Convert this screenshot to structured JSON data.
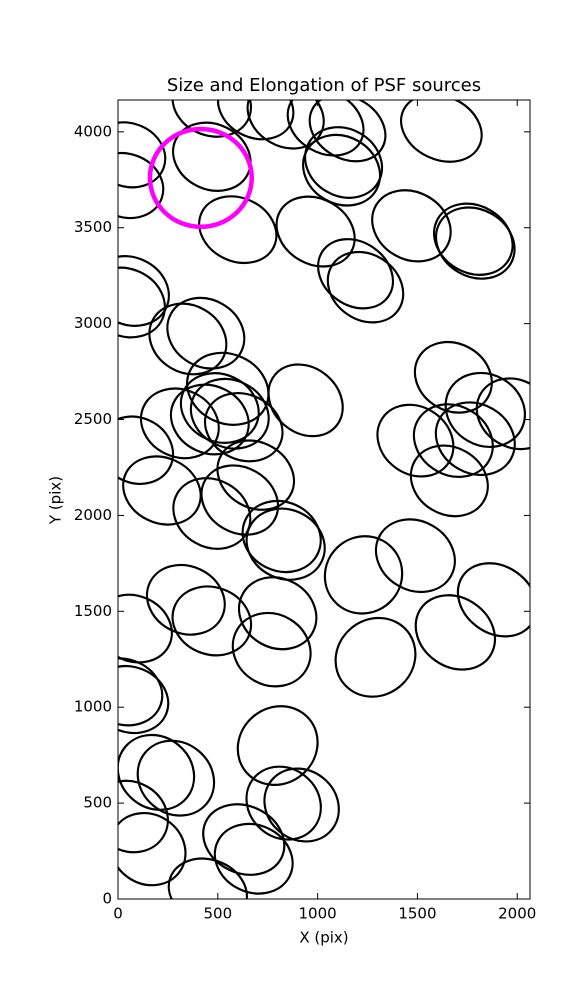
{
  "chart_data": {
    "type": "ellipse",
    "title": "Size and Elongation of PSF sources",
    "xlabel": "X (pix)",
    "ylabel": "Y (pix)",
    "xlim": [
      0,
      2064
    ],
    "ylim": [
      0,
      4166
    ],
    "xticks": [
      0,
      500,
      1000,
      1500,
      2000
    ],
    "yticks": [
      0,
      500,
      1000,
      1500,
      2000,
      2500,
      3000,
      3500,
      4000
    ],
    "color": "#000000",
    "ellipses": {
      "x": [
        50,
        40,
        470,
        470,
        690,
        840,
        1040,
        1150,
        1620,
        1130,
        1120,
        600,
        990,
        1470,
        1790,
        1780,
        1190,
        1240,
        60,
        40,
        350,
        440,
        550,
        510,
        940,
        310,
        460,
        560,
        630,
        690,
        90,
        220,
        470,
        610,
        820,
        840,
        1230,
        1490,
        1680,
        1840,
        1990,
        1490,
        1680,
        1790,
        1660,
        340,
        470,
        800,
        770,
        80,
        30,
        60,
        1290,
        1690,
        1900,
        190,
        290,
        800,
        830,
        920,
        60,
        150,
        630,
        680,
        450
      ],
      "y": [
        3880,
        3720,
        3870,
        4150,
        4130,
        4090,
        4050,
        4020,
        4020,
        3840,
        3800,
        3490,
        3480,
        3510,
        3420,
        3440,
        3260,
        3190,
        3170,
        3110,
        2920,
        2950,
        2660,
        2560,
        2600,
        2480,
        2500,
        2530,
        2460,
        2210,
        2340,
        2130,
        2010,
        2080,
        1890,
        1850,
        1690,
        1790,
        2720,
        2550,
        2530,
        2390,
        2390,
        2400,
        2180,
        1560,
        1450,
        1490,
        1300,
        1410,
        1080,
        1040,
        1260,
        1390,
        1560,
        660,
        630,
        800,
        500,
        490,
        430,
        260,
        310,
        210,
        40
      ],
      "width": [
        380,
        380,
        400,
        400,
        390,
        400,
        400,
        400,
        420,
        400,
        400,
        400,
        410,
        410,
        410,
        410,
        400,
        400,
        400,
        400,
        400,
        400,
        420,
        400,
        400,
        400,
        400,
        400,
        400,
        400,
        380,
        400,
        400,
        400,
        400,
        400,
        380,
        410,
        400,
        410,
        400,
        400,
        410,
        410,
        400,
        400,
        400,
        400,
        400,
        390,
        390,
        390,
        380,
        420,
        420,
        400,
        400,
        380,
        390,
        390,
        390,
        390,
        420,
        400,
        400
      ],
      "height": [
        330,
        330,
        340,
        340,
        320,
        330,
        320,
        320,
        330,
        350,
        350,
        330,
        340,
        350,
        350,
        350,
        330,
        340,
        350,
        350,
        350,
        350,
        360,
        350,
        340,
        350,
        350,
        350,
        340,
        340,
        340,
        340,
        350,
        340,
        360,
        360,
        410,
        360,
        350,
        370,
        350,
        350,
        360,
        360,
        350,
        350,
        350,
        360,
        370,
        340,
        340,
        340,
        430,
        360,
        350,
        370,
        370,
        430,
        360,
        360,
        360,
        360,
        350,
        350,
        330
      ],
      "angle": [
        -20,
        -20,
        -25,
        -20,
        -25,
        -30,
        -30,
        -30,
        -25,
        -30,
        -30,
        -25,
        -30,
        -30,
        -30,
        -30,
        -35,
        -35,
        -25,
        -25,
        -30,
        -30,
        -25,
        -25,
        -40,
        -25,
        -25,
        -25,
        -25,
        -30,
        -25,
        -25,
        -30,
        -30,
        -25,
        -25,
        -45,
        -30,
        -30,
        -30,
        -30,
        -35,
        -30,
        -30,
        -30,
        -25,
        -20,
        -30,
        -30,
        -25,
        -20,
        -20,
        -50,
        -35,
        -35,
        -40,
        -40,
        -50,
        -40,
        -40,
        -30,
        -35,
        -25,
        -25,
        -20
      ]
    },
    "highlight": {
      "x": 415,
      "y": 3760,
      "radius": 255,
      "color": "#ff00ff"
    }
  }
}
